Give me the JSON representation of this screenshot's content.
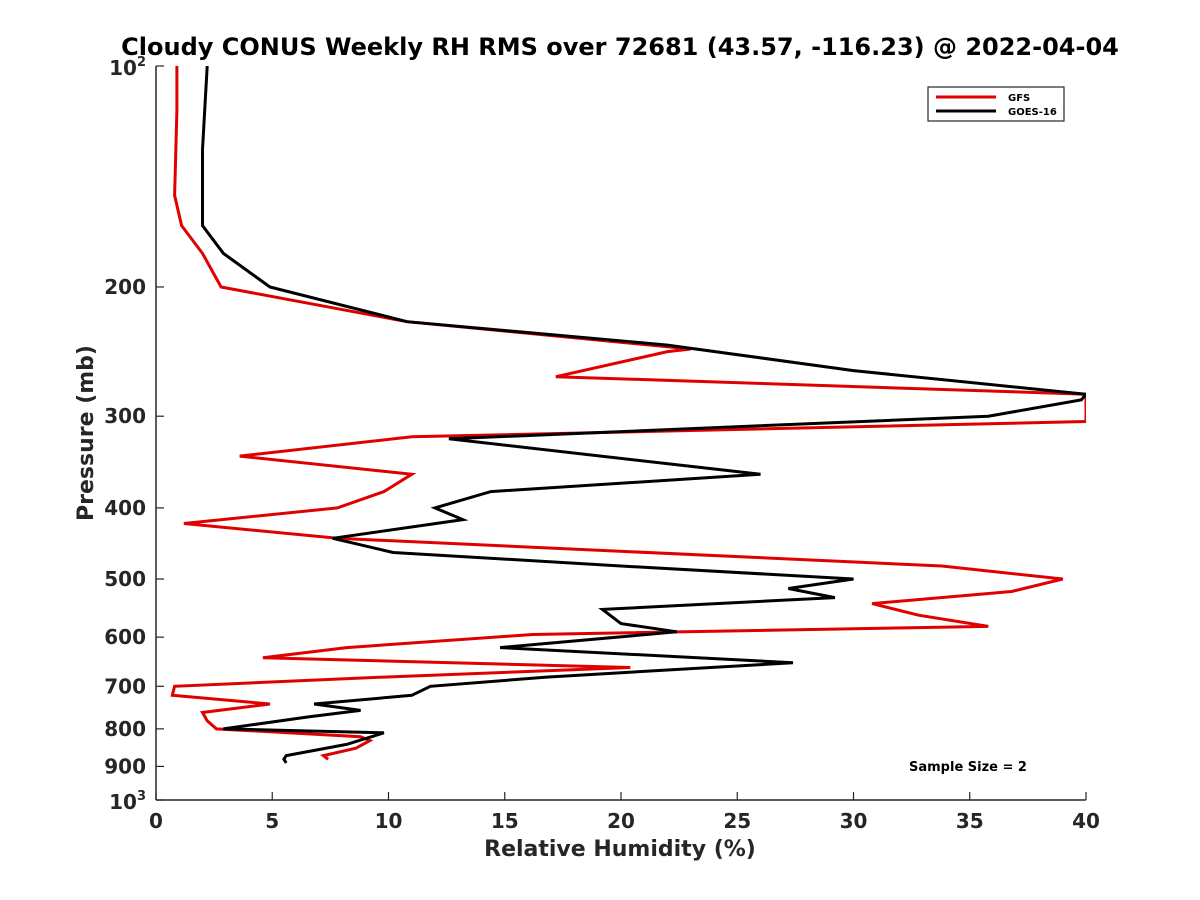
{
  "chart_data": {
    "type": "line",
    "title": "Cloudy CONUS Weekly RH RMS over 72681 (43.57, -116.23) @ 2022-04-04",
    "xlabel": "Relative Humidity (%)",
    "ylabel": "Pressure (mb)",
    "xlim": [
      0,
      40
    ],
    "ylim": [
      100,
      1000
    ],
    "yscale": "log",
    "y_reversed": true,
    "x_ticks": [
      "0",
      "5",
      "10",
      "15",
      "20",
      "25",
      "30",
      "35",
      "40"
    ],
    "y_ticks": [
      {
        "value": 100,
        "base": "10",
        "exp": "2"
      },
      {
        "value": 200,
        "label": "200"
      },
      {
        "value": 300,
        "label": "300"
      },
      {
        "value": 400,
        "label": "400"
      },
      {
        "value": 500,
        "label": "500"
      },
      {
        "value": 600,
        "label": "600"
      },
      {
        "value": 700,
        "label": "700"
      },
      {
        "value": 800,
        "label": "800"
      },
      {
        "value": 900,
        "label": "900"
      },
      {
        "value": 1000,
        "base": "10",
        "exp": "3"
      }
    ],
    "grid": false,
    "legend_position": "top-right",
    "annotation": "Sample Size = 2",
    "series": [
      {
        "name": "GFS",
        "color": "#e00000",
        "x": [
          0.9,
          0.9,
          0.8,
          1.1,
          2.0,
          2.8,
          10.8,
          23.0,
          22.0,
          17.2,
          40.0,
          40.0,
          11.0,
          3.6,
          11.0,
          9.8,
          7.8,
          1.2,
          7.8,
          33.8,
          39.0,
          36.8,
          30.8,
          32.8,
          35.8,
          16.2,
          8.2,
          4.6,
          20.4,
          9.8,
          0.8,
          0.7,
          4.9,
          2.0,
          2.2,
          2.6,
          8.8,
          9.2,
          8.6,
          7.2,
          7.4
        ],
        "y": [
          100,
          115,
          150,
          165,
          180,
          200,
          223,
          243,
          245,
          265,
          280,
          305,
          320,
          340,
          360,
          380,
          400,
          420,
          440,
          480,
          500,
          520,
          540,
          560,
          580,
          595,
          620,
          640,
          660,
          680,
          700,
          720,
          740,
          760,
          780,
          800,
          820,
          830,
          850,
          870,
          880
        ]
      },
      {
        "name": "GOES-16",
        "color": "#000000",
        "x": [
          2.2,
          2.0,
          2.0,
          2.0,
          2.9,
          4.9,
          10.8,
          22.0,
          30.0,
          40.0,
          39.8,
          35.8,
          12.6,
          26.0,
          14.4,
          12.0,
          13.2,
          7.6,
          10.2,
          20.0,
          30.0,
          27.2,
          29.2,
          19.2,
          20.0,
          22.4,
          14.8,
          27.4,
          16.8,
          11.8,
          11.0,
          6.8,
          8.8,
          6.6,
          2.9,
          9.8,
          8.2,
          5.6,
          5.5,
          5.6
        ],
        "y": [
          100,
          130,
          150,
          165,
          180,
          200,
          223,
          240,
          260,
          280,
          285,
          300,
          322,
          360,
          380,
          400,
          415,
          440,
          460,
          480,
          500,
          515,
          530,
          550,
          575,
          590,
          620,
          650,
          680,
          700,
          720,
          740,
          755,
          770,
          800,
          810,
          840,
          870,
          880,
          890
        ]
      }
    ]
  }
}
